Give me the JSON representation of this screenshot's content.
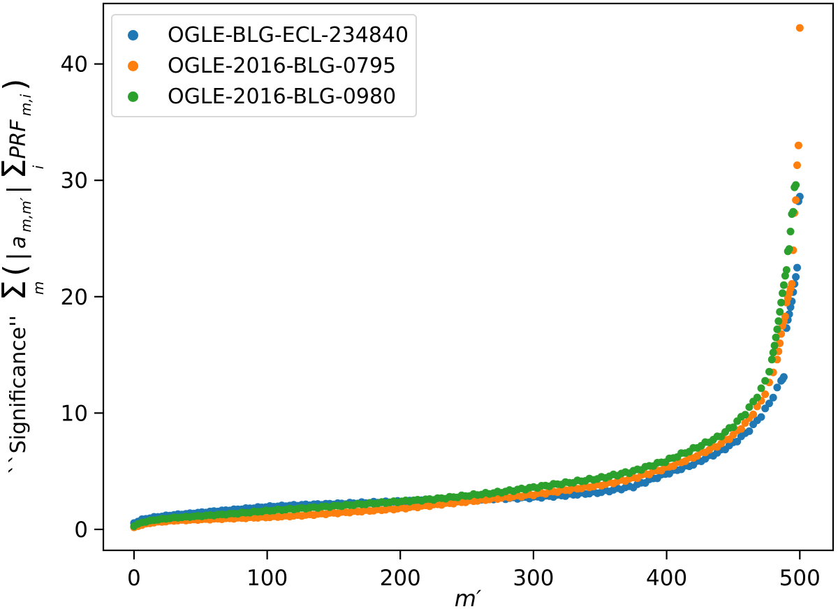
{
  "chart_data": {
    "type": "scatter",
    "title": "",
    "xlabel": "m′",
    "ylabel": {
      "prefix": "``Significance''",
      "sigma": "Σ",
      "sigma_sub": "m",
      "open": "(",
      "bar_open": "|",
      "a": "a",
      "a_sub": "m,m′",
      "bar_close": "|",
      "sigma2": "Σ",
      "sigma2_sub": "i",
      "prf": "PRF",
      "prf_sub": "m,i",
      "close": ")"
    },
    "xlim": [
      -23,
      525
    ],
    "ylim": [
      -1.8,
      45.2
    ],
    "xticks": [
      0,
      100,
      200,
      300,
      400,
      500
    ],
    "yticks": [
      0,
      10,
      20,
      30,
      40
    ],
    "grid": false,
    "legend_position": "upper left",
    "marker_radius": 5.5,
    "axis_color": "#000000",
    "background_color": "#ffffff",
    "series": [
      {
        "name": "OGLE-BLG-ECL-234840",
        "color": "#1f77b4",
        "anchors": [
          [
            0,
            0.55
          ],
          [
            6,
            0.85
          ],
          [
            15,
            1.05
          ],
          [
            30,
            1.25
          ],
          [
            50,
            1.45
          ],
          [
            75,
            1.7
          ],
          [
            100,
            1.95
          ],
          [
            125,
            2.1
          ],
          [
            150,
            2.2
          ],
          [
            175,
            2.3
          ],
          [
            200,
            2.4
          ],
          [
            225,
            2.5
          ],
          [
            250,
            2.55
          ],
          [
            275,
            2.65
          ],
          [
            300,
            2.75
          ],
          [
            325,
            2.95
          ],
          [
            350,
            3.2
          ],
          [
            375,
            3.7
          ],
          [
            400,
            4.8
          ],
          [
            420,
            5.6
          ],
          [
            440,
            6.7
          ],
          [
            450,
            7.4
          ],
          [
            460,
            8.3
          ],
          [
            470,
            9.6
          ],
          [
            478,
            11.0
          ],
          [
            484,
            12.3
          ],
          [
            486,
            12.8
          ]
        ],
        "tail": [
          [
            487,
            12.9
          ],
          [
            488,
            13.1
          ],
          [
            490,
            17.3
          ],
          [
            491,
            18.0
          ],
          [
            492,
            18.5
          ],
          [
            493,
            19.1
          ],
          [
            494,
            19.6
          ],
          [
            495,
            20.4
          ],
          [
            496,
            21.1
          ],
          [
            497,
            21.7
          ],
          [
            498,
            22.5
          ],
          [
            499,
            28.2
          ],
          [
            500,
            28.6
          ]
        ]
      },
      {
        "name": "OGLE-2016-BLG-0795",
        "color": "#ff7f0e",
        "anchors": [
          [
            0,
            0.15
          ],
          [
            6,
            0.4
          ],
          [
            15,
            0.6
          ],
          [
            30,
            0.75
          ],
          [
            50,
            0.85
          ],
          [
            75,
            0.95
          ],
          [
            100,
            1.05
          ],
          [
            125,
            1.2
          ],
          [
            150,
            1.4
          ],
          [
            175,
            1.6
          ],
          [
            200,
            1.8
          ],
          [
            225,
            2.1
          ],
          [
            250,
            2.4
          ],
          [
            275,
            2.7
          ],
          [
            300,
            3.0
          ],
          [
            325,
            3.4
          ],
          [
            350,
            3.8
          ],
          [
            375,
            4.4
          ],
          [
            400,
            5.3
          ],
          [
            420,
            6.2
          ],
          [
            440,
            7.3
          ],
          [
            450,
            8.1
          ],
          [
            460,
            9.2
          ],
          [
            470,
            10.8
          ],
          [
            476,
            12.2
          ],
          [
            480,
            13.5
          ],
          [
            482,
            14.0
          ]
        ],
        "tail": [
          [
            483,
            14.6
          ],
          [
            484,
            15.3
          ],
          [
            485,
            16.0
          ],
          [
            486,
            16.8
          ],
          [
            487,
            17.5
          ],
          [
            488,
            17.9
          ],
          [
            489,
            18.3
          ],
          [
            490,
            19.5
          ],
          [
            491,
            19.9
          ],
          [
            492,
            20.3
          ],
          [
            493,
            20.7
          ],
          [
            494,
            21.1
          ],
          [
            495,
            24.0
          ],
          [
            496,
            27.2
          ],
          [
            497,
            28.3
          ],
          [
            498,
            31.3
          ],
          [
            499,
            33.0
          ],
          [
            500,
            43.1
          ]
        ]
      },
      {
        "name": "OGLE-2016-BLG-0980",
        "color": "#2ca02c",
        "anchors": [
          [
            0,
            0.3
          ],
          [
            6,
            0.6
          ],
          [
            15,
            0.8
          ],
          [
            30,
            1.0
          ],
          [
            50,
            1.15
          ],
          [
            75,
            1.35
          ],
          [
            100,
            1.6
          ],
          [
            125,
            1.8
          ],
          [
            150,
            2.0
          ],
          [
            175,
            2.2
          ],
          [
            200,
            2.4
          ],
          [
            225,
            2.6
          ],
          [
            250,
            2.9
          ],
          [
            275,
            3.2
          ],
          [
            300,
            3.6
          ],
          [
            325,
            4.0
          ],
          [
            350,
            4.4
          ],
          [
            375,
            5.0
          ],
          [
            400,
            5.9
          ],
          [
            420,
            6.9
          ],
          [
            440,
            8.0
          ],
          [
            450,
            8.9
          ],
          [
            460,
            10.1
          ],
          [
            470,
            11.8
          ],
          [
            475,
            13.0
          ],
          [
            478,
            14.0
          ]
        ],
        "tail": [
          [
            479,
            14.6
          ],
          [
            480,
            15.2
          ],
          [
            481,
            15.8
          ],
          [
            482,
            16.5
          ],
          [
            483,
            17.2
          ],
          [
            484,
            17.9
          ],
          [
            485,
            18.7
          ],
          [
            486,
            19.5
          ],
          [
            487,
            20.3
          ],
          [
            488,
            21.0
          ],
          [
            489,
            21.8
          ],
          [
            490,
            22.3
          ],
          [
            491,
            23.9
          ],
          [
            492,
            24.1
          ],
          [
            493,
            25.6
          ],
          [
            494,
            27.1
          ],
          [
            495,
            27.3
          ],
          [
            496,
            29.4
          ],
          [
            497,
            29.6
          ]
        ]
      }
    ]
  }
}
